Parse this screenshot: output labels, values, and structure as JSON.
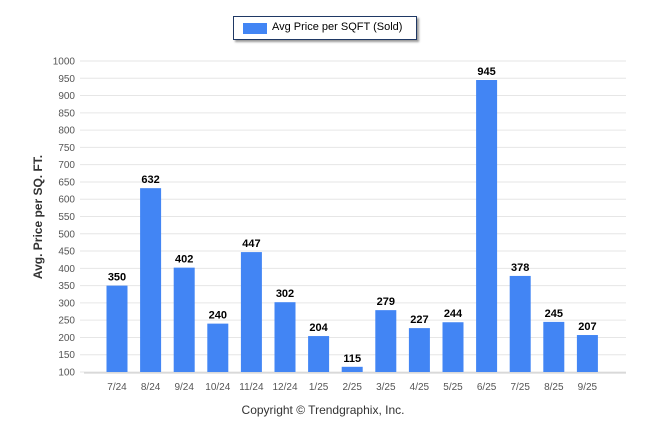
{
  "chart_data": {
    "type": "bar",
    "legend": "Avg Price per SQFT (Sold)",
    "legend_position": "top-center",
    "ylabel": "Avg. Price per SQ. FT.",
    "xlabel": "",
    "ylim": [
      100,
      1000
    ],
    "yticks": [
      100,
      150,
      200,
      250,
      300,
      350,
      400,
      450,
      500,
      550,
      600,
      650,
      700,
      750,
      800,
      850,
      900,
      950,
      1000
    ],
    "grid": true,
    "categories": [
      "7/24",
      "8/24",
      "9/24",
      "10/24",
      "11/24",
      "12/24",
      "1/25",
      "2/25",
      "3/25",
      "4/25",
      "5/25",
      "6/25",
      "7/25",
      "8/25",
      "9/25"
    ],
    "values": [
      350,
      632,
      402,
      240,
      447,
      302,
      204,
      115,
      279,
      227,
      244,
      945,
      378,
      245,
      207
    ],
    "color": "#4285f4"
  },
  "footer": "Copyright © Trendgraphix, Inc."
}
